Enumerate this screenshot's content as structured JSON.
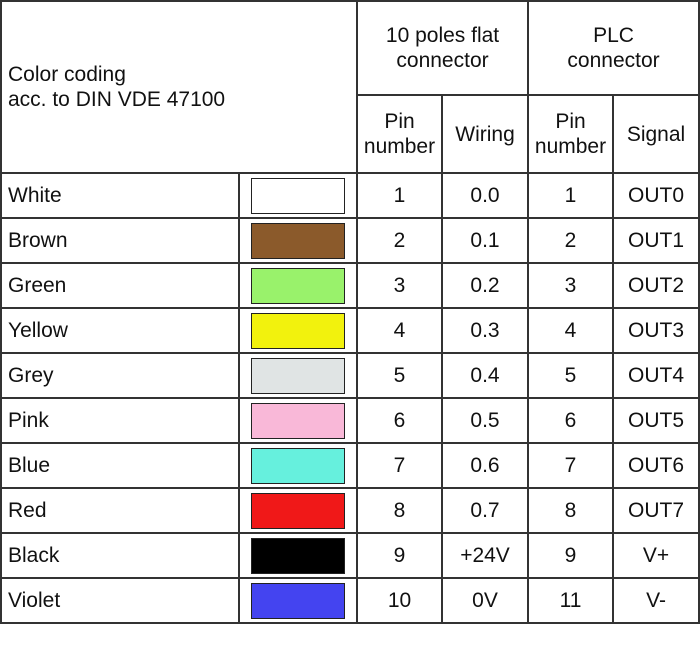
{
  "header": {
    "color_coding": [
      "Color coding",
      "acc. to DIN VDE 47100"
    ],
    "flat_connector": [
      "10 poles flat",
      "connector"
    ],
    "plc_connector": [
      "PLC",
      "connector"
    ],
    "columns": [
      [
        "Pin",
        "number"
      ],
      [
        "Wiring"
      ],
      [
        "Pin",
        "number"
      ],
      [
        "Signal"
      ]
    ]
  },
  "table": {
    "rows": [
      {
        "name": "White",
        "color": "#ffffff",
        "cells": [
          "1",
          "0.0",
          "1",
          "OUT0"
        ]
      },
      {
        "name": "Brown",
        "color": "#8b5a2b",
        "cells": [
          "2",
          "0.1",
          "2",
          "OUT1"
        ]
      },
      {
        "name": "Green",
        "color": "#99f26b",
        "cells": [
          "3",
          "0.2",
          "3",
          "OUT2"
        ]
      },
      {
        "name": "Yellow",
        "color": "#f2f20d",
        "cells": [
          "4",
          "0.3",
          "4",
          "OUT3"
        ]
      },
      {
        "name": "Grey",
        "color": "#e0e4e4",
        "cells": [
          "5",
          "0.4",
          "5",
          "OUT4"
        ]
      },
      {
        "name": "Pink",
        "color": "#f9b8d8",
        "cells": [
          "6",
          "0.5",
          "6",
          "OUT5"
        ]
      },
      {
        "name": "Blue",
        "color": "#66f0dd",
        "cells": [
          "7",
          "0.6",
          "7",
          "OUT6"
        ]
      },
      {
        "name": "Red",
        "color": "#f01818",
        "cells": [
          "8",
          "0.7",
          "8",
          "OUT7"
        ]
      },
      {
        "name": "Black",
        "color": "#000000",
        "cells": [
          "9",
          "+24V",
          "9",
          "V+"
        ]
      },
      {
        "name": "Violet",
        "color": "#4444f0",
        "cells": [
          "10",
          "0V",
          "11",
          "V-"
        ]
      }
    ]
  }
}
